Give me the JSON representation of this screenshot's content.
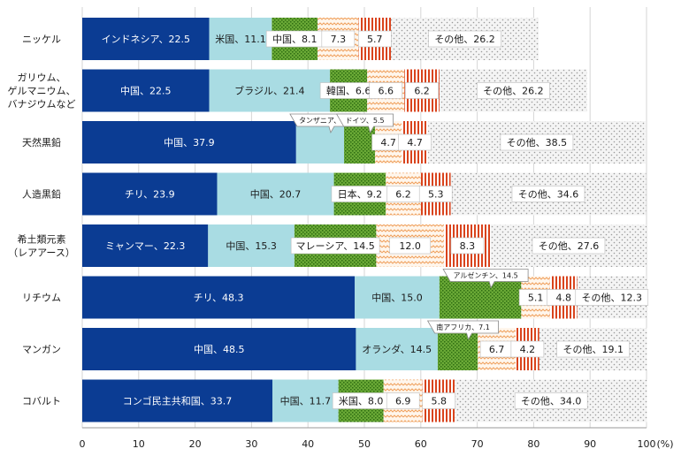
{
  "chart_data": {
    "type": "bar",
    "orientation": "horizontal",
    "stacked": true,
    "unit_label": "(%)",
    "xlim": [
      0,
      100
    ],
    "xticks": [
      0,
      10,
      20,
      30,
      40,
      50,
      60,
      70,
      80,
      90,
      100
    ],
    "categories": [
      [
        "ニッケル"
      ],
      [
        "ガリウム、",
        "ゲルマニウム、",
        "バナジウムなど"
      ],
      [
        "天然黒鉛"
      ],
      [
        "人造黒鉛"
      ],
      [
        "希土類元素",
        "（レアアース）"
      ],
      [
        "リチウム"
      ],
      [
        "マンガン"
      ],
      [
        "コバルト"
      ]
    ],
    "rows": [
      {
        "segments": [
          {
            "label": "インドネシア、22.5",
            "value": 22.5
          },
          {
            "label": "米国、11.1",
            "value": 11.1
          },
          {
            "label": "中国、8.1",
            "value": 8.1
          },
          {
            "label": "7.3",
            "value": 7.3
          },
          {
            "label": "5.7",
            "value": 5.7
          },
          {
            "label": "その他、26.2",
            "value": 26.2
          }
        ]
      },
      {
        "segments": [
          {
            "label": "中国、22.5",
            "value": 22.5
          },
          {
            "label": "ブラジル、21.4",
            "value": 21.4
          },
          {
            "label": "韓国、6.6",
            "value": 6.6
          },
          {
            "label": "6.6",
            "value": 6.6
          },
          {
            "label": "6.2",
            "value": 6.2
          },
          {
            "label": "その他、26.2",
            "value": 26.2
          }
        ]
      },
      {
        "segments": [
          {
            "label": "中国、37.9",
            "value": 37.9
          },
          {
            "label": "タンザニア、8.5",
            "value": 8.5,
            "callout": true
          },
          {
            "label": "ドイツ、5.5",
            "value": 5.5,
            "callout": true
          },
          {
            "label": "4.7",
            "value": 4.7
          },
          {
            "label": "4.7",
            "value": 4.7
          },
          {
            "label": "その他、38.5",
            "value": 38.5
          }
        ]
      },
      {
        "segments": [
          {
            "label": "チリ、23.9",
            "value": 23.9
          },
          {
            "label": "中国、20.7",
            "value": 20.7
          },
          {
            "label": "日本、9.2",
            "value": 9.2
          },
          {
            "label": "6.2",
            "value": 6.2
          },
          {
            "label": "5.3",
            "value": 5.3
          },
          {
            "label": "その他、34.6",
            "value": 34.6
          }
        ]
      },
      {
        "segments": [
          {
            "label": "ミャンマー、22.3",
            "value": 22.3
          },
          {
            "label": "中国、15.3",
            "value": 15.3
          },
          {
            "label": "マレーシア、14.5",
            "value": 14.5
          },
          {
            "label": "12.0",
            "value": 12.0
          },
          {
            "label": "8.3",
            "value": 8.3
          },
          {
            "label": "その他、27.6",
            "value": 27.6
          }
        ]
      },
      {
        "segments": [
          {
            "label": "チリ、48.3",
            "value": 48.3
          },
          {
            "label": "中国、15.0",
            "value": 15.0
          },
          {
            "label": "アルゼンチン、14.5",
            "value": 14.5,
            "callout": true
          },
          {
            "label": "5.1",
            "value": 5.1
          },
          {
            "label": "4.8",
            "value": 4.8
          },
          {
            "label": "その他、12.3",
            "value": 12.3
          }
        ]
      },
      {
        "segments": [
          {
            "label": "中国、48.5",
            "value": 48.5
          },
          {
            "label": "オランダ、14.5",
            "value": 14.5
          },
          {
            "label": "南アフリカ、7.1",
            "value": 7.1,
            "callout": true
          },
          {
            "label": "6.7",
            "value": 6.7
          },
          {
            "label": "4.2",
            "value": 4.2
          },
          {
            "label": "その他、19.1",
            "value": 19.1
          }
        ]
      },
      {
        "segments": [
          {
            "label": "コンゴ民主共和国、33.7",
            "value": 33.7
          },
          {
            "label": "中国、11.7",
            "value": 11.7
          },
          {
            "label": "米国、8.0",
            "value": 8.0
          },
          {
            "label": "6.9",
            "value": 6.9
          },
          {
            "label": "5.8",
            "value": 5.8
          },
          {
            "label": "その他、34.0",
            "value": 34.0
          }
        ]
      }
    ],
    "colors": {
      "rank1": "#0b3c93",
      "rank2": "#a9dce3",
      "rank3": "#5a9a2a",
      "rank4": "#f3a86b",
      "rank5": "#d9431c",
      "other": "#bfbfbf"
    }
  }
}
